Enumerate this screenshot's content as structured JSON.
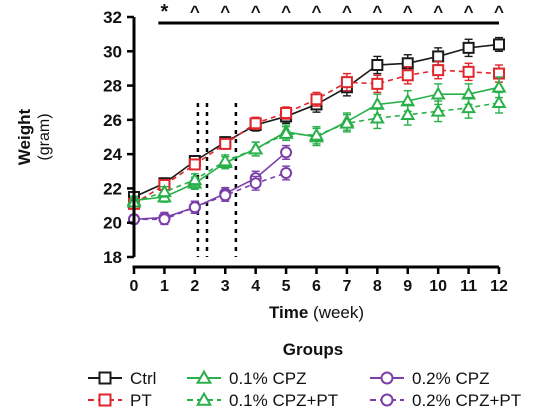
{
  "chart_data": {
    "type": "line",
    "xlabel_bold": "Time",
    "xlabel_unit": "(week)",
    "ylabel_bold": "Weight",
    "ylabel_unit": "(gram)",
    "x_ticks": [
      0,
      1,
      2,
      3,
      4,
      5,
      6,
      7,
      8,
      9,
      10,
      11,
      12
    ],
    "y_ticks": [
      18,
      20,
      22,
      24,
      26,
      28,
      30,
      32
    ],
    "xlim": [
      0,
      12
    ],
    "ylim": [
      18,
      32
    ],
    "significance": {
      "bar_range": [
        0.8,
        12
      ],
      "marks": [
        {
          "x": 1,
          "symbol": "*"
        },
        {
          "x": 2,
          "symbol": "^"
        },
        {
          "x": 3,
          "symbol": "^"
        },
        {
          "x": 4,
          "symbol": "^"
        },
        {
          "x": 5,
          "symbol": "^"
        },
        {
          "x": 6,
          "symbol": "^"
        },
        {
          "x": 7,
          "symbol": "^"
        },
        {
          "x": 8,
          "symbol": "^"
        },
        {
          "x": 9,
          "symbol": "^"
        },
        {
          "x": 10,
          "symbol": "^"
        },
        {
          "x": 11,
          "symbol": "^"
        },
        {
          "x": 12,
          "symbol": "^"
        }
      ]
    },
    "vertical_markers": [
      2.1,
      2.4,
      3.35
    ],
    "legend_title": "Groups",
    "series": [
      {
        "name": "Ctrl",
        "color": "#1a1a1a",
        "marker": "square",
        "dashed": false,
        "x": [
          0,
          1,
          2,
          3,
          4,
          5,
          6,
          7,
          8,
          9,
          10,
          11,
          12
        ],
        "values": [
          21.5,
          22.3,
          23.6,
          24.7,
          25.7,
          26.2,
          26.9,
          27.9,
          29.2,
          29.3,
          29.7,
          30.2,
          30.4
        ],
        "errors": [
          0.25,
          0.3,
          0.3,
          0.3,
          0.35,
          0.4,
          0.45,
          0.5,
          0.5,
          0.5,
          0.5,
          0.5,
          0.4
        ]
      },
      {
        "name": "PT",
        "color": "#e0262b",
        "marker": "square",
        "dashed": true,
        "x": [
          0,
          1,
          2,
          3,
          4,
          5,
          6,
          7,
          8,
          9,
          10,
          11,
          12
        ],
        "values": [
          21.1,
          22.2,
          23.4,
          24.6,
          25.8,
          26.4,
          27.2,
          28.2,
          28.1,
          28.6,
          28.9,
          28.8,
          28.7
        ],
        "errors": [
          0.25,
          0.3,
          0.3,
          0.3,
          0.35,
          0.35,
          0.4,
          0.5,
          0.5,
          0.5,
          0.5,
          0.5,
          0.5
        ]
      },
      {
        "name": "0.1% CPZ",
        "color": "#2ab04a",
        "marker": "triangle",
        "dashed": false,
        "x": [
          0,
          1,
          2,
          3,
          4,
          5,
          6,
          7,
          8,
          9,
          10,
          11,
          12
        ],
        "values": [
          21.3,
          21.5,
          22.3,
          23.5,
          24.3,
          25.3,
          25.0,
          25.9,
          26.9,
          27.1,
          27.5,
          27.5,
          27.9
        ],
        "errors": [
          0.25,
          0.3,
          0.35,
          0.35,
          0.4,
          0.4,
          0.5,
          0.5,
          0.6,
          0.6,
          0.6,
          0.6,
          0.6
        ]
      },
      {
        "name": "0.1% CPZ+PT",
        "color": "#2ab04a",
        "marker": "triangle",
        "dashed": true,
        "x": [
          0,
          1,
          2,
          3,
          4,
          5,
          6,
          7,
          8,
          9,
          10,
          11,
          12
        ],
        "values": [
          21.2,
          21.8,
          22.5,
          23.6,
          24.3,
          25.2,
          25.1,
          25.8,
          26.1,
          26.3,
          26.5,
          26.7,
          27.0
        ],
        "errors": [
          0.25,
          0.3,
          0.35,
          0.35,
          0.4,
          0.4,
          0.5,
          0.5,
          0.6,
          0.6,
          0.6,
          0.6,
          0.6
        ]
      },
      {
        "name": "0.2% CPZ",
        "color": "#7a3fa8",
        "marker": "circle",
        "dashed": false,
        "x": [
          0,
          1,
          2,
          3,
          4,
          5
        ],
        "values": [
          20.2,
          20.3,
          20.9,
          21.7,
          22.6,
          24.1
        ],
        "errors": [
          0.25,
          0.3,
          0.35,
          0.35,
          0.4,
          0.4
        ]
      },
      {
        "name": "0.2% CPZ+PT",
        "color": "#7a3fa8",
        "marker": "circle",
        "dashed": true,
        "x": [
          0,
          1,
          2,
          3,
          4,
          5
        ],
        "values": [
          20.2,
          20.2,
          20.9,
          21.6,
          22.3,
          22.9
        ],
        "errors": [
          0.25,
          0.3,
          0.35,
          0.35,
          0.4,
          0.4
        ]
      }
    ]
  }
}
